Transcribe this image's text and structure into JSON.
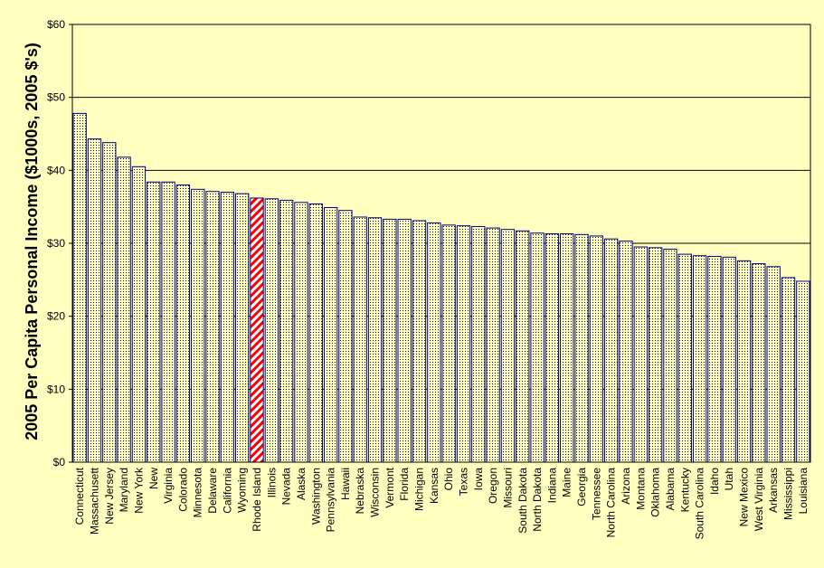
{
  "chart_data": {
    "type": "bar",
    "ylabel": "2005 Per Capita Personal Income ($1000s, 2005 $'s)",
    "xlabel": "",
    "ylim": [
      0,
      60
    ],
    "yticks": [
      "$0",
      "$10",
      "$20",
      "$30",
      "$40",
      "$50",
      "$60"
    ],
    "grid": "horizontal",
    "highlighted_category": "Rhode Island",
    "colors": {
      "background": "#ffffc0",
      "plot_background": "#ffffc0",
      "bar_border": "#000080",
      "bar_dots": "#000000",
      "highlight_stripes": "#ff0000",
      "gridline": "#000000"
    },
    "categories": [
      "Connecticut",
      "Massachusett",
      "New Jersey",
      "Maryland",
      "New York",
      "New",
      "Virginia",
      "Colorado",
      "Minnesota",
      "Delaware",
      "California",
      "Wyoming",
      "Rhode Island",
      "Illinois",
      "Nevada",
      "Alaska",
      "Washington",
      "Pennsylvania",
      "Hawaii",
      "Nebraska",
      "Wisconsin",
      "Vermont",
      "Florida",
      "Michigan",
      "Kansas",
      "Ohio",
      "Texas",
      "Iowa",
      "Oregon",
      "Missouri",
      "South Dakota",
      "North Dakota",
      "Indiana",
      "Maine",
      "Georgia",
      "Tennessee",
      "North Carolina",
      "Arizona",
      "Montana",
      "Oklahoma",
      "Alabama",
      "Kentucky",
      "South Carolina",
      "Idaho",
      "Utah",
      "New Mexico",
      "West Virginia",
      "Arkansas",
      "Mississippi",
      "Louisiana"
    ],
    "values": [
      47.8,
      44.3,
      43.8,
      41.8,
      40.5,
      38.4,
      38.4,
      38.0,
      37.4,
      37.1,
      37.0,
      36.8,
      36.2,
      36.1,
      35.9,
      35.6,
      35.4,
      34.9,
      34.5,
      33.6,
      33.5,
      33.3,
      33.3,
      33.1,
      32.8,
      32.5,
      32.4,
      32.3,
      32.1,
      31.9,
      31.7,
      31.4,
      31.3,
      31.3,
      31.2,
      31.0,
      30.6,
      30.3,
      29.5,
      29.4,
      29.2,
      28.5,
      28.3,
      28.2,
      28.1,
      27.6,
      27.2,
      26.8,
      25.3,
      24.8
    ]
  }
}
